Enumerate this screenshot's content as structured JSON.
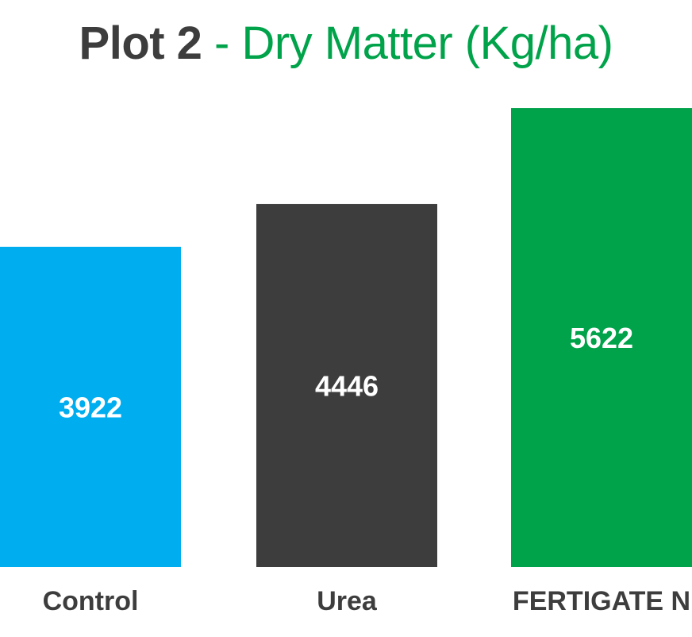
{
  "chart_data": {
    "type": "bar",
    "title_main": "Plot 2",
    "title_separator": " - ",
    "title_sub": "Dry Matter (Kg/ha)",
    "categories": [
      "Control",
      "Urea",
      "FERTIGATE N"
    ],
    "values": [
      3922,
      4446,
      5622
    ],
    "bar_colors": [
      "#00aeef",
      "#3d3d3d",
      "#00a34a"
    ],
    "title_color": "#3d3d3d",
    "accent_color": "#00a34a",
    "value_label_color": "#ffffff",
    "category_label_color": "#3d3d3d",
    "grid": false,
    "legend": "none",
    "ylim": [
      0,
      5700
    ]
  }
}
